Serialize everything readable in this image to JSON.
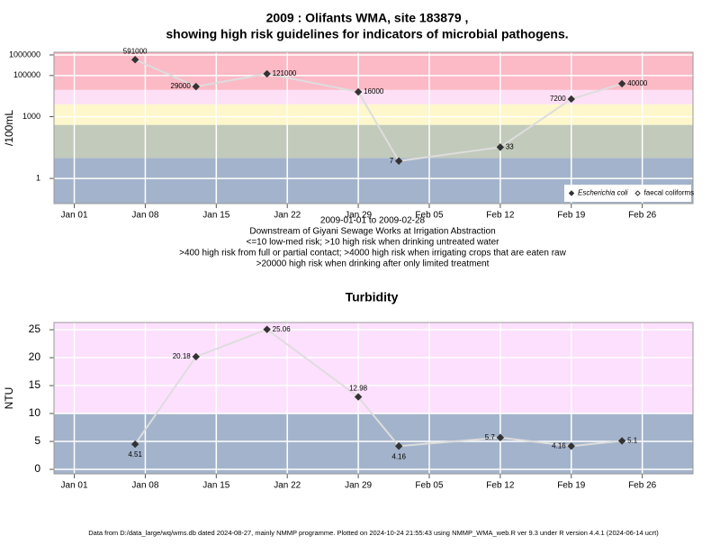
{
  "title": [
    "2009 : Olifants WMA, site 183879 ,",
    "showing high risk guidelines for indicators of microbial pathogens."
  ],
  "footer": "Data from D:/data_large/wq/wms.db dated 2024-08-27, mainly NMMP programme. Plotted on 2024-10-24 21:55:43 using NMMP_WMA_web.R ver 9.3 under R version 4.4.1 (2024-06-14 ucrt)",
  "chart_data": [
    {
      "type": "line",
      "ylabel": "/100mL",
      "log_y": true,
      "xlabel": [
        "2009-01-01 to 2009-02-28",
        "Downstream of Giyani Sewage Works at Irrigation Abstraction",
        "<=10 low-med risk; >10 high risk when drinking untreated water",
        ">400 high risk from full or partial contact; >4000 high risk when irrigating crops that are eaten raw",
        ">20000 high risk when drinking after only limited treatment"
      ],
      "x": [
        "2009-01-07",
        "2009-01-13",
        "2009-01-20",
        "2009-01-29",
        "2009-02-02",
        "2009-02-12",
        "2009-02-19",
        "2009-02-24"
      ],
      "series": [
        {
          "name": "Escherichia coli",
          "color": "#333333",
          "filled": true,
          "values": [
            591000,
            29000,
            121000,
            16000,
            7,
            33,
            7200,
            40000
          ]
        },
        {
          "name": "faecal coliforms",
          "color": "#333333",
          "filled": false,
          "values": [
            null,
            null,
            null,
            null,
            null,
            null,
            null,
            null
          ]
        }
      ],
      "line_color": "#dddddd",
      "thresholds": [
        10,
        400,
        4000,
        20000
      ],
      "band_colors": [
        "#a3b3cb",
        "#c2cabb",
        "#fdf7cb",
        "#fde0f5",
        "#fcb9c6"
      ],
      "xlim": [
        "2008-12-30",
        "2009-03-03"
      ],
      "xticks": [
        {
          "value": "2009-01-01",
          "label": "Jan 01"
        },
        {
          "value": "2009-01-08",
          "label": "Jan 08"
        },
        {
          "value": "2009-01-15",
          "label": "Jan 15"
        },
        {
          "value": "2009-01-22",
          "label": "Jan 22"
        },
        {
          "value": "2009-01-29",
          "label": "Jan 29"
        },
        {
          "value": "2009-02-05",
          "label": "Feb 05"
        },
        {
          "value": "2009-02-12",
          "label": "Feb 12"
        },
        {
          "value": "2009-02-19",
          "label": "Feb 19"
        },
        {
          "value": "2009-02-26",
          "label": "Feb 26"
        }
      ],
      "ylim": [
        0.06,
        1350000
      ],
      "yticks": [
        1,
        1000,
        100000,
        1000000
      ],
      "grid": true,
      "legend": "lower right"
    },
    {
      "type": "line",
      "title": "Turbidity",
      "ylabel": "NTU",
      "log_y": false,
      "x": [
        "2009-01-07",
        "2009-01-13",
        "2009-01-20",
        "2009-01-29",
        "2009-02-02",
        "2009-02-12",
        "2009-02-19",
        "2009-02-24"
      ],
      "values": [
        4.51,
        20.18,
        25.06,
        12.98,
        4.16,
        5.7,
        4.16,
        5.1
      ],
      "color": "#333333",
      "line_color": "#dddddd",
      "thresholds": [
        10
      ],
      "band_colors": [
        "#a3b3cb",
        "#fde0fd"
      ],
      "xlim": [
        "2008-12-30",
        "2009-03-03"
      ],
      "xticks": [
        {
          "value": "2009-01-01",
          "label": "Jan 01"
        },
        {
          "value": "2009-01-08",
          "label": "Jan 08"
        },
        {
          "value": "2009-01-15",
          "label": "Jan 15"
        },
        {
          "value": "2009-01-22",
          "label": "Jan 22"
        },
        {
          "value": "2009-01-29",
          "label": "Jan 29"
        },
        {
          "value": "2009-02-05",
          "label": "Feb 05"
        },
        {
          "value": "2009-02-12",
          "label": "Feb 12"
        },
        {
          "value": "2009-02-19",
          "label": "Feb 19"
        },
        {
          "value": "2009-02-26",
          "label": "Feb 26"
        }
      ],
      "ylim": [
        -0.8,
        26.3
      ],
      "yticks": [
        0,
        5,
        10,
        15,
        20,
        25
      ],
      "grid": true
    }
  ]
}
